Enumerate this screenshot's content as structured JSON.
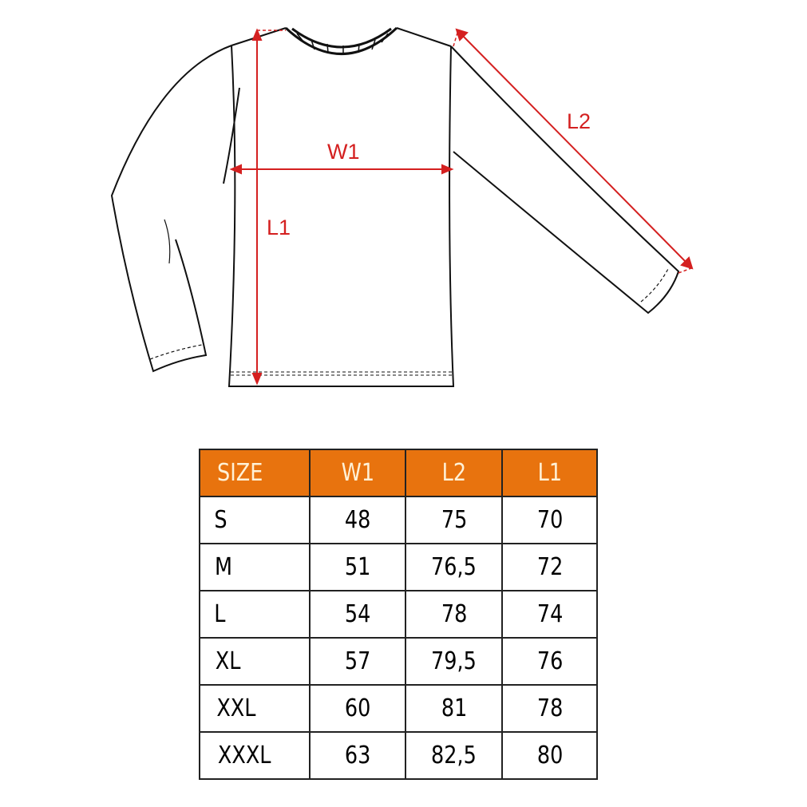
{
  "diagram": {
    "labels": {
      "w1": "W1",
      "l1": "L1",
      "l2": "L2"
    },
    "arrow_color": "#d42020"
  },
  "size_table": {
    "header_color": "#e8730e",
    "columns": [
      "SIZE",
      "W1",
      "L2",
      "L1"
    ],
    "rows": [
      [
        "S",
        "48",
        "75",
        "70"
      ],
      [
        "M",
        "51",
        "76,5",
        "72"
      ],
      [
        "L",
        "54",
        "78",
        "74"
      ],
      [
        "XL",
        "57",
        "79,5",
        "76"
      ],
      [
        "XXL",
        "60",
        "81",
        "78"
      ],
      [
        "XXXL",
        "63",
        "82,5",
        "80"
      ]
    ]
  }
}
